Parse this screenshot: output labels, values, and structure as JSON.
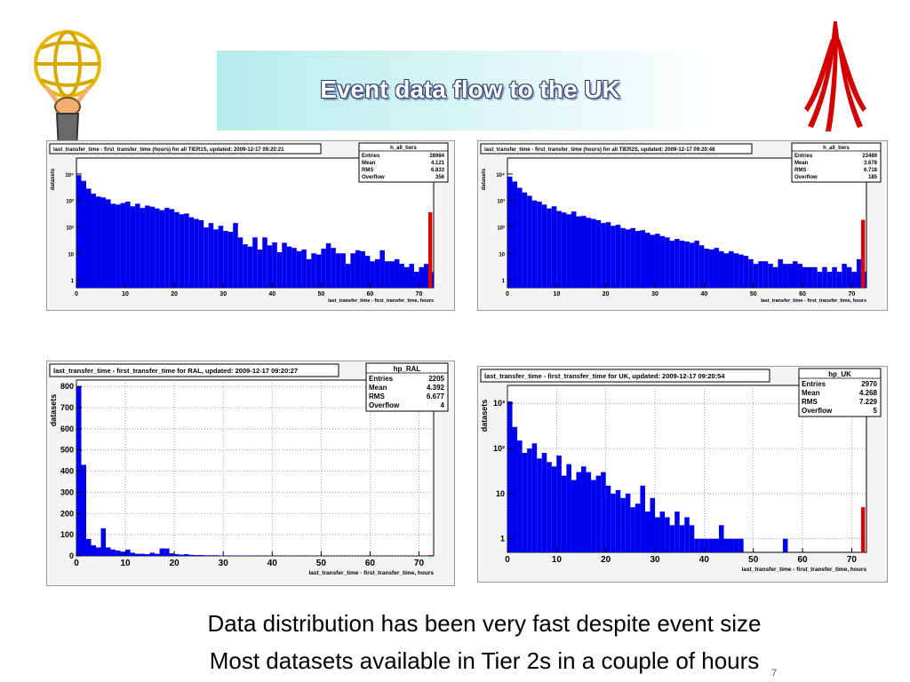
{
  "slide": {
    "title": "Event data flow to the UK",
    "lines": [
      "Data distribution has been very fast despite event size",
      "Most datasets available in Tier 2s in a couple of hours"
    ],
    "page_number": "7"
  },
  "colors": {
    "bar": "#0000ee",
    "overflow": "#dd0000",
    "title_bg_left": "#b5ecec"
  },
  "chart_data": [
    {
      "type": "bar",
      "title": "last_transfer_time - first_transfer_time (hours) for all TIER1S, updated: 2009-12-17 09:20:21",
      "xlabel": "last_transfer_time - first_transfer_time, hours",
      "ylabel": "datasets",
      "yscale": "log",
      "xlim": [
        0,
        73
      ],
      "ylim": [
        0.5,
        40000
      ],
      "xticks": [
        "0",
        "10",
        "20",
        "30",
        "40",
        "50",
        "60",
        "70"
      ],
      "yticks": [
        {
          "v": 1,
          "t": "1"
        },
        {
          "v": 10,
          "t": "10"
        },
        {
          "v": 100,
          "t": "10²"
        },
        {
          "v": 1000,
          "t": "10³"
        },
        {
          "v": 10000,
          "t": "10⁴"
        }
      ],
      "stats": {
        "name": "h_all_tiers",
        "rows": [
          [
            "Entries",
            "28984"
          ],
          [
            "Mean",
            "4.121"
          ],
          [
            "RMS",
            "6.833"
          ],
          [
            "Overflow",
            "356"
          ]
        ]
      },
      "values": [
        9000,
        5500,
        2800,
        1800,
        1400,
        1300,
        1100,
        750,
        700,
        800,
        900,
        600,
        750,
        520,
        640,
        580,
        500,
        430,
        520,
        470,
        360,
        300,
        320,
        230,
        200,
        180,
        95,
        140,
        80,
        110,
        70,
        65,
        140,
        40,
        22,
        18,
        40,
        14,
        40,
        20,
        26,
        11,
        25,
        18,
        16,
        12,
        14,
        6,
        10,
        9,
        15,
        24,
        16,
        10,
        10,
        4,
        10,
        13,
        12,
        8,
        5,
        6,
        13,
        5,
        5,
        6,
        4,
        3,
        4,
        2,
        3,
        4,
        2
      ],
      "overflow": 356
    },
    {
      "type": "bar",
      "title": "last_transfer_time - first_transfer_time (hours) for all TIER2S, updated: 2009-12-17 09:20:48",
      "xlabel": "last_transfer_time - first_transfer_time, hours",
      "ylabel": "datasets",
      "yscale": "log",
      "xlim": [
        0,
        73
      ],
      "ylim": [
        0.5,
        40000
      ],
      "xticks": [
        "0",
        "10",
        "20",
        "30",
        "40",
        "50",
        "60",
        "70"
      ],
      "yticks": [
        {
          "v": 1,
          "t": "1"
        },
        {
          "v": 10,
          "t": "10"
        },
        {
          "v": 100,
          "t": "10²"
        },
        {
          "v": 1000,
          "t": "10³"
        },
        {
          "v": 10000,
          "t": "10⁴"
        }
      ],
      "stats": {
        "name": "h_all_tiers",
        "rows": [
          [
            "Entries",
            "23489"
          ],
          [
            "Mean",
            "3.678"
          ],
          [
            "RMS",
            "6.718"
          ],
          [
            "Overflow",
            "185"
          ]
        ]
      },
      "values": [
        8000,
        5200,
        3000,
        2000,
        1500,
        1000,
        900,
        700,
        500,
        600,
        400,
        350,
        300,
        380,
        250,
        260,
        220,
        200,
        180,
        140,
        150,
        110,
        120,
        90,
        80,
        90,
        70,
        75,
        60,
        50,
        55,
        45,
        40,
        30,
        35,
        30,
        28,
        25,
        30,
        20,
        15,
        14,
        16,
        12,
        10,
        12,
        10,
        9,
        8,
        6,
        4,
        5,
        5,
        4,
        3,
        6,
        4,
        4,
        5,
        4,
        3,
        3,
        3,
        2,
        3,
        2,
        3,
        2,
        4,
        3,
        2,
        6,
        2
      ],
      "overflow": 185
    },
    {
      "type": "bar",
      "title": "last_transfer_time - first_transfer_time for RAL, updated: 2009-12-17 09:20:27",
      "xlabel": "last_transfer_time - first_transfer_time, hours",
      "ylabel": "datasets",
      "yscale": "linear",
      "xlim": [
        0,
        73
      ],
      "ylim": [
        0,
        830
      ],
      "xticks": [
        "0",
        "10",
        "20",
        "30",
        "40",
        "50",
        "60",
        "70"
      ],
      "yticks": [
        {
          "v": 0,
          "t": "0"
        },
        {
          "v": 100,
          "t": "100"
        },
        {
          "v": 200,
          "t": "200"
        },
        {
          "v": 300,
          "t": "300"
        },
        {
          "v": 400,
          "t": "400"
        },
        {
          "v": 500,
          "t": "500"
        },
        {
          "v": 600,
          "t": "600"
        },
        {
          "v": 700,
          "t": "700"
        },
        {
          "v": 800,
          "t": "800"
        }
      ],
      "stats": {
        "name": "hp_RAL",
        "rows": [
          [
            "Entries",
            "2205"
          ],
          [
            "Mean",
            "4.392"
          ],
          [
            "RMS",
            "6.677"
          ],
          [
            "Overflow",
            "4"
          ]
        ]
      },
      "values": [
        800,
        430,
        80,
        50,
        40,
        130,
        40,
        30,
        25,
        20,
        30,
        15,
        10,
        10,
        8,
        15,
        10,
        35,
        35,
        12,
        8,
        6,
        8,
        5,
        4,
        4,
        3,
        3,
        3,
        2,
        2,
        2,
        2,
        2,
        2,
        2,
        1,
        1,
        1,
        1,
        1,
        1,
        1,
        1,
        1,
        1,
        1,
        1,
        1,
        1,
        1,
        1,
        1,
        1,
        1,
        1,
        1,
        1,
        1,
        1,
        1,
        1,
        1,
        1,
        1,
        1,
        1,
        1,
        1,
        1,
        1,
        1,
        1
      ],
      "overflow": 4
    },
    {
      "type": "bar",
      "title": "last_transfer_time - first_transfer_time for UK, updated: 2009-12-17 09:20:54",
      "xlabel": "last_transfer_time - first_transfer_time, hours",
      "ylabel": "datasets",
      "yscale": "log",
      "xlim": [
        0,
        73
      ],
      "ylim": [
        0.5,
        2500
      ],
      "xticks": [
        "0",
        "10",
        "20",
        "30",
        "40",
        "50",
        "60",
        "70"
      ],
      "yticks": [
        {
          "v": 1,
          "t": "1"
        },
        {
          "v": 10,
          "t": "10"
        },
        {
          "v": 100,
          "t": "10²"
        },
        {
          "v": 1000,
          "t": "10³"
        }
      ],
      "stats": {
        "name": "hp_UK",
        "rows": [
          [
            "Entries",
            "2970"
          ],
          [
            "Mean",
            "4.268"
          ],
          [
            "RMS",
            "7.229"
          ],
          [
            "Overflow",
            "5"
          ]
        ]
      },
      "values": [
        1100,
        300,
        150,
        80,
        100,
        130,
        60,
        80,
        50,
        40,
        70,
        25,
        45,
        20,
        30,
        40,
        30,
        20,
        25,
        30,
        15,
        10,
        12,
        8,
        10,
        5,
        6,
        15,
        4,
        8,
        3,
        4,
        3,
        2,
        4,
        2,
        3,
        2,
        1,
        1,
        1,
        1,
        1,
        2,
        1,
        1,
        1,
        1,
        0,
        0,
        0,
        0,
        0,
        0,
        0,
        0,
        1,
        0,
        0,
        0,
        0,
        0,
        0,
        0,
        0,
        0,
        0,
        0,
        0,
        0,
        0,
        0,
        0
      ],
      "overflow": 5
    }
  ]
}
